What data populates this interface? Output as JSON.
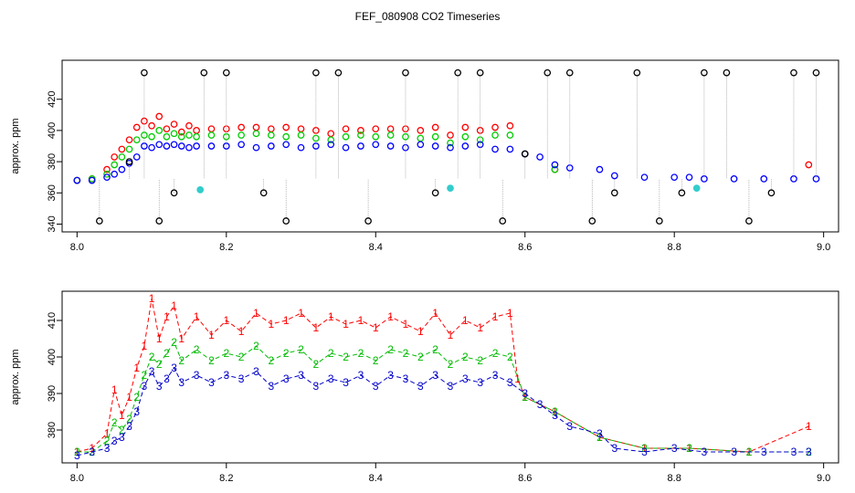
{
  "figure": {
    "title": "FEF_080908  CO2 Timeseries"
  },
  "chart_data": [
    {
      "type": "scatter",
      "panel": "top",
      "title": "",
      "xlabel": "",
      "ylabel": "approx. ppm",
      "xlim": [
        7.98,
        9.02
      ],
      "ylim": [
        335,
        445
      ],
      "xticks": [
        8.0,
        8.2,
        8.4,
        8.6,
        8.8,
        9.0
      ],
      "xtick_labels": [
        "8.0",
        "8.2",
        "8.4",
        "8.6",
        "8.8",
        "9.0"
      ],
      "yticks": [
        340,
        360,
        380,
        400,
        420
      ],
      "ytick_labels": [
        "340",
        "360",
        "380",
        "400",
        "420"
      ],
      "grid": false,
      "series": [
        {
          "name": "red",
          "color": "#ff0000",
          "marker": "circle",
          "x": [
            8.0,
            8.02,
            8.04,
            8.05,
            8.06,
            8.07,
            8.08,
            8.09,
            8.1,
            8.11,
            8.12,
            8.13,
            8.14,
            8.15,
            8.16,
            8.18,
            8.2,
            8.22,
            8.24,
            8.26,
            8.28,
            8.3,
            8.32,
            8.34,
            8.36,
            8.38,
            8.4,
            8.42,
            8.44,
            8.46,
            8.48,
            8.5,
            8.52,
            8.54,
            8.56,
            8.58,
            8.6,
            8.64,
            8.98
          ],
          "y": [
            368,
            369,
            375,
            383,
            388,
            394,
            402,
            406,
            403,
            409,
            401,
            404,
            399,
            403,
            400,
            401,
            401,
            402,
            402,
            401,
            402,
            401,
            400,
            398,
            401,
            400,
            401,
            401,
            401,
            400,
            402,
            397,
            402,
            400,
            402,
            403,
            385,
            375,
            378
          ]
        },
        {
          "name": "green",
          "color": "#00cc00",
          "marker": "circle",
          "x": [
            8.0,
            8.02,
            8.04,
            8.05,
            8.06,
            8.07,
            8.08,
            8.09,
            8.1,
            8.11,
            8.12,
            8.13,
            8.14,
            8.15,
            8.16,
            8.18,
            8.2,
            8.22,
            8.24,
            8.26,
            8.28,
            8.3,
            8.32,
            8.34,
            8.36,
            8.38,
            8.4,
            8.42,
            8.44,
            8.46,
            8.48,
            8.5,
            8.52,
            8.54,
            8.56,
            8.58,
            8.6,
            8.64
          ],
          "y": [
            368,
            369,
            372,
            378,
            383,
            388,
            394,
            397,
            396,
            400,
            396,
            398,
            396,
            397,
            396,
            397,
            396,
            397,
            398,
            397,
            396,
            397,
            395,
            394,
            396,
            397,
            396,
            397,
            396,
            395,
            396,
            392,
            396,
            394,
            397,
            397,
            385,
            375
          ]
        },
        {
          "name": "blue",
          "color": "#0000ff",
          "marker": "circle",
          "x": [
            8.0,
            8.02,
            8.04,
            8.05,
            8.06,
            8.07,
            8.08,
            8.09,
            8.1,
            8.11,
            8.12,
            8.13,
            8.14,
            8.15,
            8.16,
            8.18,
            8.2,
            8.22,
            8.24,
            8.26,
            8.28,
            8.3,
            8.32,
            8.34,
            8.36,
            8.38,
            8.4,
            8.42,
            8.44,
            8.46,
            8.48,
            8.5,
            8.52,
            8.54,
            8.56,
            8.58,
            8.6,
            8.62,
            8.64,
            8.66,
            8.7,
            8.72,
            8.76,
            8.8,
            8.82,
            8.84,
            8.88,
            8.92,
            8.96,
            8.99
          ],
          "y": [
            368,
            368,
            370,
            372,
            375,
            379,
            383,
            390,
            389,
            391,
            390,
            391,
            390,
            389,
            390,
            390,
            390,
            391,
            389,
            390,
            391,
            389,
            390,
            391,
            389,
            390,
            391,
            390,
            389,
            391,
            390,
            389,
            390,
            391,
            388,
            388,
            385,
            383,
            378,
            376,
            375,
            371,
            370,
            370,
            370,
            369,
            369,
            369,
            369,
            369
          ]
        },
        {
          "name": "cyan",
          "color": "#33cccc",
          "marker": "filled-circle",
          "x": [
            8.165,
            8.5,
            8.83
          ],
          "y": [
            362,
            363,
            363
          ]
        },
        {
          "name": "black",
          "color": "#000000",
          "marker": "circle",
          "x": [
            8.03,
            8.07,
            8.09,
            8.11,
            8.13,
            8.17,
            8.2,
            8.25,
            8.28,
            8.32,
            8.35,
            8.39,
            8.44,
            8.48,
            8.51,
            8.54,
            8.57,
            8.6,
            8.63,
            8.66,
            8.69,
            8.72,
            8.75,
            8.78,
            8.81,
            8.84,
            8.87,
            8.9,
            8.93,
            8.96,
            8.99
          ],
          "y": [
            342,
            380,
            437,
            342,
            360,
            437,
            437,
            360,
            342,
            437,
            437,
            342,
            437,
            360,
            437,
            437,
            342,
            385,
            437,
            437,
            342,
            360,
            437,
            342,
            360,
            437,
            437,
            342,
            360,
            437,
            437
          ]
        }
      ]
    },
    {
      "type": "line",
      "panel": "bottom",
      "title": "",
      "xlabel": "",
      "ylabel": "approx. ppm",
      "xlim": [
        7.98,
        9.02
      ],
      "ylim": [
        371,
        418
      ],
      "xticks": [
        8.0,
        8.2,
        8.4,
        8.6,
        8.8,
        9.0
      ],
      "xtick_labels": [
        "8.0",
        "8.2",
        "8.4",
        "8.6",
        "8.8",
        "9.0"
      ],
      "yticks": [
        380,
        390,
        400,
        410
      ],
      "ytick_labels": [
        "380",
        "390",
        "400",
        "410"
      ],
      "grid": false,
      "series": [
        {
          "name": "1",
          "color": "#ff0000",
          "marker": "1",
          "x": [
            8.0,
            8.02,
            8.04,
            8.05,
            8.06,
            8.07,
            8.08,
            8.09,
            8.1,
            8.11,
            8.12,
            8.13,
            8.14,
            8.16,
            8.18,
            8.2,
            8.22,
            8.24,
            8.26,
            8.28,
            8.3,
            8.32,
            8.34,
            8.36,
            8.38,
            8.4,
            8.42,
            8.44,
            8.46,
            8.48,
            8.5,
            8.52,
            8.54,
            8.56,
            8.58,
            8.59,
            8.6,
            8.64,
            8.7,
            8.76,
            8.82,
            8.9,
            8.98
          ],
          "y": [
            374,
            375,
            379,
            391,
            384,
            389,
            397,
            403,
            416,
            405,
            411,
            414,
            405,
            411,
            406,
            410,
            407,
            412,
            409,
            410,
            412,
            408,
            411,
            409,
            410,
            408,
            411,
            409,
            407,
            412,
            406,
            410,
            408,
            411,
            412,
            394,
            389,
            385,
            378,
            375,
            375,
            374,
            381
          ]
        },
        {
          "name": "2",
          "color": "#00bb00",
          "marker": "2",
          "x": [
            8.0,
            8.02,
            8.04,
            8.05,
            8.06,
            8.07,
            8.08,
            8.09,
            8.1,
            8.11,
            8.12,
            8.13,
            8.14,
            8.16,
            8.18,
            8.2,
            8.22,
            8.24,
            8.26,
            8.28,
            8.3,
            8.32,
            8.34,
            8.36,
            8.38,
            8.4,
            8.42,
            8.44,
            8.46,
            8.48,
            8.5,
            8.52,
            8.54,
            8.56,
            8.58,
            8.6,
            8.64,
            8.7,
            8.76,
            8.82,
            8.9,
            8.98
          ],
          "y": [
            374,
            374,
            377,
            382,
            380,
            383,
            389,
            395,
            400,
            398,
            401,
            404,
            399,
            402,
            399,
            401,
            400,
            403,
            399,
            401,
            402,
            398,
            401,
            400,
            401,
            399,
            402,
            401,
            400,
            402,
            398,
            400,
            399,
            401,
            400,
            389,
            385,
            378,
            375,
            375,
            374,
            374
          ]
        },
        {
          "name": "3",
          "color": "#0000cc",
          "marker": "3",
          "x": [
            8.0,
            8.02,
            8.04,
            8.05,
            8.06,
            8.07,
            8.08,
            8.09,
            8.1,
            8.11,
            8.12,
            8.13,
            8.14,
            8.16,
            8.18,
            8.2,
            8.22,
            8.24,
            8.26,
            8.28,
            8.3,
            8.32,
            8.34,
            8.36,
            8.38,
            8.4,
            8.42,
            8.44,
            8.46,
            8.48,
            8.5,
            8.52,
            8.54,
            8.56,
            8.58,
            8.6,
            8.62,
            8.64,
            8.66,
            8.7,
            8.72,
            8.76,
            8.8,
            8.84,
            8.88,
            8.92,
            8.96,
            8.98
          ],
          "y": [
            373,
            374,
            375,
            377,
            378,
            381,
            385,
            392,
            396,
            392,
            394,
            397,
            393,
            395,
            393,
            395,
            394,
            396,
            392,
            394,
            395,
            392,
            394,
            393,
            395,
            392,
            395,
            394,
            392,
            395,
            392,
            394,
            393,
            395,
            393,
            390,
            387,
            384,
            381,
            379,
            375,
            374,
            375,
            374,
            374,
            374,
            374,
            374
          ]
        }
      ]
    }
  ]
}
